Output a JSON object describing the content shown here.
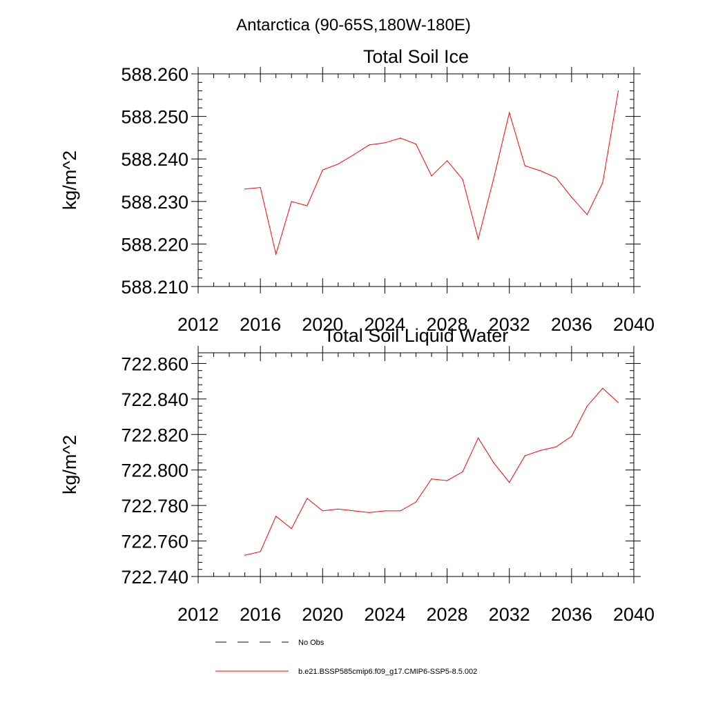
{
  "figure_title": "Antarctica (90-65S,180W-180E)",
  "legend": {
    "placement": "bottom",
    "entries": [
      {
        "label": "No Obs",
        "style": "dashed",
        "color": "#000080"
      },
      {
        "label": "b.e21.BSSP585cmip6.f09_g17.CMIP6-SSP5-8.5.002",
        "style": "solid",
        "color": "#ff0000"
      }
    ]
  },
  "chart_data": [
    {
      "type": "line",
      "title": "Total Soil Ice",
      "xlabel": "",
      "ylabel": "kg/m^2",
      "xlim": [
        2012,
        2040
      ],
      "ylim": [
        588.21,
        588.26
      ],
      "xticks": [
        "2012",
        "2016",
        "2020",
        "2024",
        "2028",
        "2032",
        "2036",
        "2040"
      ],
      "yticks": [
        "588.210",
        "588.220",
        "588.230",
        "588.240",
        "588.250",
        "588.260"
      ],
      "grid": false,
      "series": [
        {
          "color": "#ff0000",
          "x": [
            2015,
            2016,
            2017,
            2018,
            2019,
            2020,
            2021,
            2022,
            2023,
            2024,
            2025,
            2026,
            2027,
            2028,
            2029,
            2030,
            2031,
            2032,
            2033,
            2034,
            2035,
            2036,
            2037,
            2038,
            2039
          ],
          "y": [
            588.2329,
            588.2333,
            588.2176,
            588.23,
            588.229,
            588.2374,
            588.2388,
            588.241,
            588.2433,
            588.2438,
            588.2449,
            588.2435,
            588.236,
            588.2396,
            588.2352,
            588.2212,
            588.2355,
            588.2509,
            588.2384,
            588.2372,
            588.2356,
            588.231,
            588.2269,
            588.2344,
            588.256
          ]
        }
      ]
    },
    {
      "type": "line",
      "title": "Total Soil Liquid Water",
      "xlabel": "",
      "ylabel": "kg/m^2",
      "xlim": [
        2012,
        2040
      ],
      "ylim": [
        722.74,
        722.866
      ],
      "xticks": [
        "2012",
        "2016",
        "2020",
        "2024",
        "2028",
        "2032",
        "2036",
        "2040"
      ],
      "yticks": [
        "722.740",
        "722.760",
        "722.780",
        "722.800",
        "722.820",
        "722.840",
        "722.860"
      ],
      "grid": false,
      "series": [
        {
          "color": "#ff0000",
          "x": [
            2015,
            2016,
            2017,
            2018,
            2019,
            2020,
            2021,
            2022,
            2023,
            2024,
            2025,
            2026,
            2027,
            2028,
            2029,
            2030,
            2031,
            2032,
            2033,
            2034,
            2035,
            2036,
            2037,
            2038,
            2039
          ],
          "y": [
            722.752,
            722.754,
            722.774,
            722.767,
            722.784,
            722.777,
            722.778,
            722.777,
            722.776,
            722.777,
            722.777,
            722.782,
            722.795,
            722.794,
            722.799,
            722.818,
            722.804,
            722.793,
            722.808,
            722.811,
            722.813,
            722.819,
            722.836,
            722.846,
            722.838
          ]
        }
      ]
    }
  ]
}
